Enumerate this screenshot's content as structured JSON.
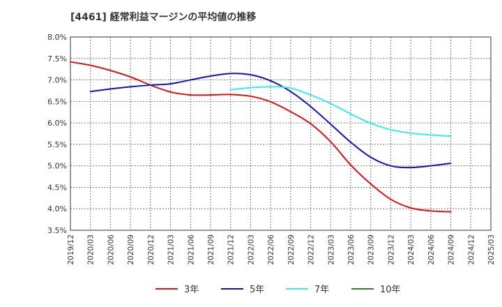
{
  "chart_data": {
    "type": "line",
    "title": "[4461]  経常利益マージンの平均値の推移",
    "xlabel": "",
    "ylabel": "",
    "ylim": [
      3.5,
      8.0
    ],
    "y_ticks": [
      "3.5%",
      "4.0%",
      "4.5%",
      "5.0%",
      "5.5%",
      "6.0%",
      "6.5%",
      "7.0%",
      "7.5%",
      "8.0%"
    ],
    "x_ticks": [
      "2019/12",
      "2020/03",
      "2020/06",
      "2020/09",
      "2020/12",
      "2021/03",
      "2021/06",
      "2021/09",
      "2021/12",
      "2022/03",
      "2022/06",
      "2022/09",
      "2022/12",
      "2023/03",
      "2023/06",
      "2023/09",
      "2023/12",
      "2024/03",
      "2024/06",
      "2024/09",
      "2024/12",
      "2025/03"
    ],
    "grid": true,
    "legend_position": "bottom",
    "series": [
      {
        "name": "3年",
        "color": "#dd1111",
        "values": [
          7.42,
          7.34,
          7.22,
          7.07,
          6.88,
          6.72,
          6.65,
          6.65,
          6.66,
          6.62,
          6.49,
          6.26,
          5.98,
          5.56,
          5.02,
          4.58,
          4.22,
          4.02,
          3.95,
          3.93
        ]
      },
      {
        "name": "5年",
        "color": "#1111bb",
        "values": [
          null,
          6.73,
          6.79,
          6.84,
          6.88,
          6.91,
          7.0,
          7.09,
          7.15,
          7.12,
          6.98,
          6.73,
          6.38,
          5.97,
          5.55,
          5.2,
          5.0,
          4.96,
          5.0,
          5.06
        ]
      },
      {
        "name": "7年",
        "color": "#33eeee",
        "values": [
          null,
          null,
          null,
          null,
          null,
          null,
          null,
          null,
          6.77,
          6.82,
          6.84,
          6.81,
          6.65,
          6.45,
          6.21,
          5.99,
          5.84,
          5.76,
          5.72,
          5.69
        ]
      },
      {
        "name": "10年",
        "color": "#228822",
        "values": []
      }
    ]
  }
}
